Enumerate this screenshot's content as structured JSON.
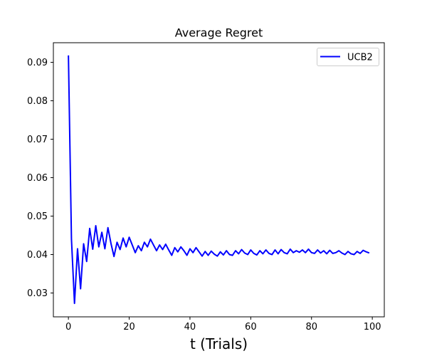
{
  "chart_data": {
    "type": "line",
    "title": "Average Regret",
    "xlabel": "t (Trials)",
    "ylabel": "",
    "xlim": [
      -4.95,
      103.95
    ],
    "ylim": [
      0.0238,
      0.0951
    ],
    "xticks": [
      0,
      20,
      40,
      60,
      80,
      100
    ],
    "yticks": [
      0.03,
      0.04,
      0.05,
      0.06,
      0.07,
      0.08,
      0.09
    ],
    "xtick_labels": [
      "0",
      "20",
      "40",
      "60",
      "80",
      "100"
    ],
    "ytick_labels": [
      "0.03",
      "0.04",
      "0.05",
      "0.06",
      "0.07",
      "0.08",
      "0.09"
    ],
    "grid": false,
    "legend": {
      "placement": "top-right"
    },
    "series": [
      {
        "name": "UCB2",
        "color": "#0000ff",
        "x": [
          0,
          1,
          2,
          3,
          4,
          5,
          6,
          7,
          8,
          9,
          10,
          11,
          12,
          13,
          14,
          15,
          16,
          17,
          18,
          19,
          20,
          21,
          22,
          23,
          24,
          25,
          26,
          27,
          28,
          29,
          30,
          31,
          32,
          33,
          34,
          35,
          36,
          37,
          38,
          39,
          40,
          41,
          42,
          43,
          44,
          45,
          46,
          47,
          48,
          49,
          50,
          51,
          52,
          53,
          54,
          55,
          56,
          57,
          58,
          59,
          60,
          61,
          62,
          63,
          64,
          65,
          66,
          67,
          68,
          69,
          70,
          71,
          72,
          73,
          74,
          75,
          76,
          77,
          78,
          79,
          80,
          81,
          82,
          83,
          84,
          85,
          86,
          87,
          88,
          89,
          90,
          91,
          92,
          93,
          94,
          95,
          96,
          97,
          98,
          99
        ],
        "values": [
          0.0918,
          0.044,
          0.0273,
          0.0415,
          0.0311,
          0.0428,
          0.0382,
          0.0468,
          0.0414,
          0.0475,
          0.042,
          0.0458,
          0.0415,
          0.047,
          0.0429,
          0.0395,
          0.0432,
          0.0413,
          0.0443,
          0.042,
          0.0445,
          0.0425,
          0.0405,
          0.0423,
          0.041,
          0.0432,
          0.042,
          0.044,
          0.0425,
          0.041,
          0.0425,
          0.0413,
          0.0427,
          0.0412,
          0.0398,
          0.0418,
          0.0407,
          0.042,
          0.041,
          0.0398,
          0.0415,
          0.0405,
          0.0418,
          0.0407,
          0.0396,
          0.0408,
          0.0398,
          0.0409,
          0.0401,
          0.0396,
          0.0407,
          0.0399,
          0.041,
          0.04,
          0.0398,
          0.041,
          0.0402,
          0.0413,
          0.0404,
          0.04,
          0.0412,
          0.0403,
          0.0399,
          0.041,
          0.0402,
          0.0412,
          0.0403,
          0.04,
          0.0412,
          0.0402,
          0.0413,
          0.0405,
          0.0402,
          0.0414,
          0.0405,
          0.041,
          0.0406,
          0.0412,
          0.0405,
          0.0414,
          0.0405,
          0.0403,
          0.0412,
          0.0404,
          0.041,
          0.0402,
          0.0411,
          0.0403,
          0.0405,
          0.041,
          0.0404,
          0.04,
          0.0408,
          0.0402,
          0.04,
          0.0408,
          0.0403,
          0.0411,
          0.0407,
          0.0404
        ]
      }
    ]
  }
}
